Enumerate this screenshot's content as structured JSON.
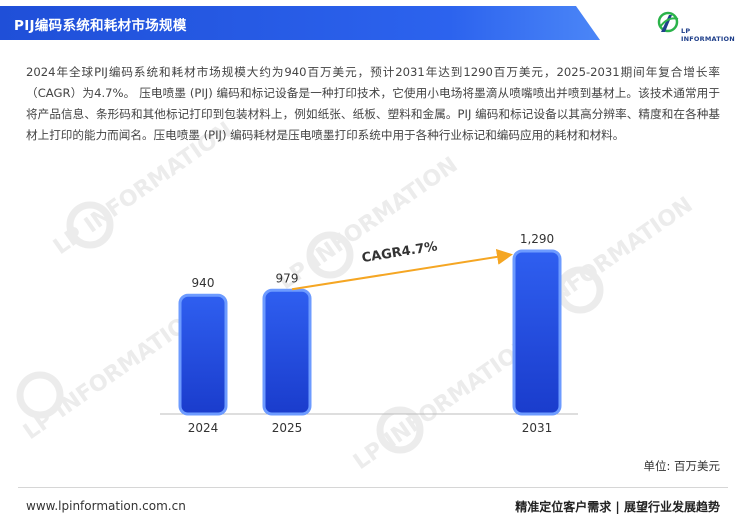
{
  "header": {
    "title": "PIJ编码系统和耗材市场规模"
  },
  "logo": {
    "text": "LP INFORMATION"
  },
  "description": "2024年全球PIJ编码系统和耗材市场规模大约为940百万美元，预计2031年达到1290百万美元，2025-2031期间年复合增长率（CAGR）为4.7%。 压电喷墨 (PIJ) 编码和标记设备是一种打印技术，它使用小电场将墨滴从喷嘴喷出并喷到基材上。该技术通常用于将产品信息、条形码和其他标记打印到包装材料上，例如纸张、纸板、塑料和金属。PIJ 编码和标记设备以其高分辨率、精度和在各种基材上打印的能力而闻名。压电喷墨 (PIJ) 编码耗材是压电喷墨打印系统中用于各种行业标记和编码应用的耗材和材料。",
  "chart_data": {
    "type": "bar",
    "categories": [
      "2024",
      "2025",
      "2031"
    ],
    "values": [
      940,
      979,
      1290
    ],
    "value_labels": [
      "940",
      "979",
      "1,290"
    ],
    "annotation": "CAGR4.7%",
    "unit": "单位: 百万美元",
    "bar_color": "#1f4fd8",
    "arrow_color": "#f5a623"
  },
  "watermark_text": "LP INFORMATION",
  "footer": {
    "website": "www.lpinformation.com.cn",
    "slogan": "精准定位客户需求 | 展望行业发展趋势"
  }
}
